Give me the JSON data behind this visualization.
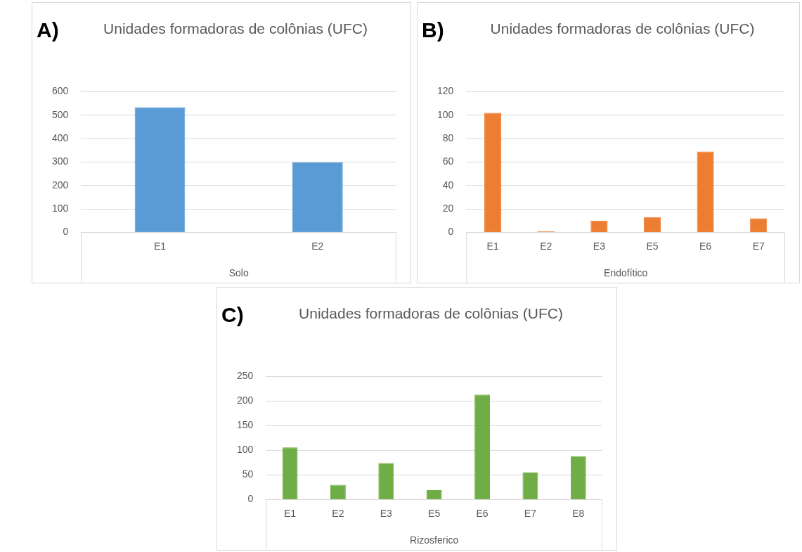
{
  "chart_data": [
    {
      "type": "bar",
      "title": "Unidades formadoras de colônias (UFC)",
      "annotations": [
        "A)"
      ],
      "xlabel": "Solo",
      "categories": [
        "E1",
        "E2"
      ],
      "values": [
        534,
        300
      ],
      "color": "#5b9bd5",
      "ylim": [
        0,
        600
      ],
      "yticks": [
        0,
        100,
        200,
        300,
        400,
        500,
        600
      ],
      "grid": "y",
      "legend": false
    },
    {
      "type": "bar",
      "title": "Unidades formadoras de colônias (UFC)",
      "annotations": [
        "B)"
      ],
      "xlabel": "Endofítico",
      "categories": [
        "E1",
        "E2",
        "E3",
        "E5",
        "E6",
        "E7"
      ],
      "values": [
        102,
        1,
        10,
        13,
        69,
        12
      ],
      "color": "#ed7d31",
      "ylim": [
        0,
        120
      ],
      "yticks": [
        0,
        20,
        40,
        60,
        80,
        100,
        120
      ],
      "grid": "y",
      "legend": false
    },
    {
      "type": "bar",
      "title": "Unidades formadoras de colônias (UFC)",
      "annotations": [
        "C)"
      ],
      "xlabel": "Rizosferico",
      "categories": [
        "E1",
        "E2",
        "E3",
        "E5",
        "E6",
        "E7",
        "E8"
      ],
      "values": [
        106,
        30,
        74,
        19,
        213,
        55,
        88
      ],
      "color": "#70ad47",
      "ylim": [
        0,
        250
      ],
      "yticks": [
        0,
        50,
        100,
        150,
        200,
        250
      ],
      "grid": "y",
      "legend": false
    }
  ]
}
